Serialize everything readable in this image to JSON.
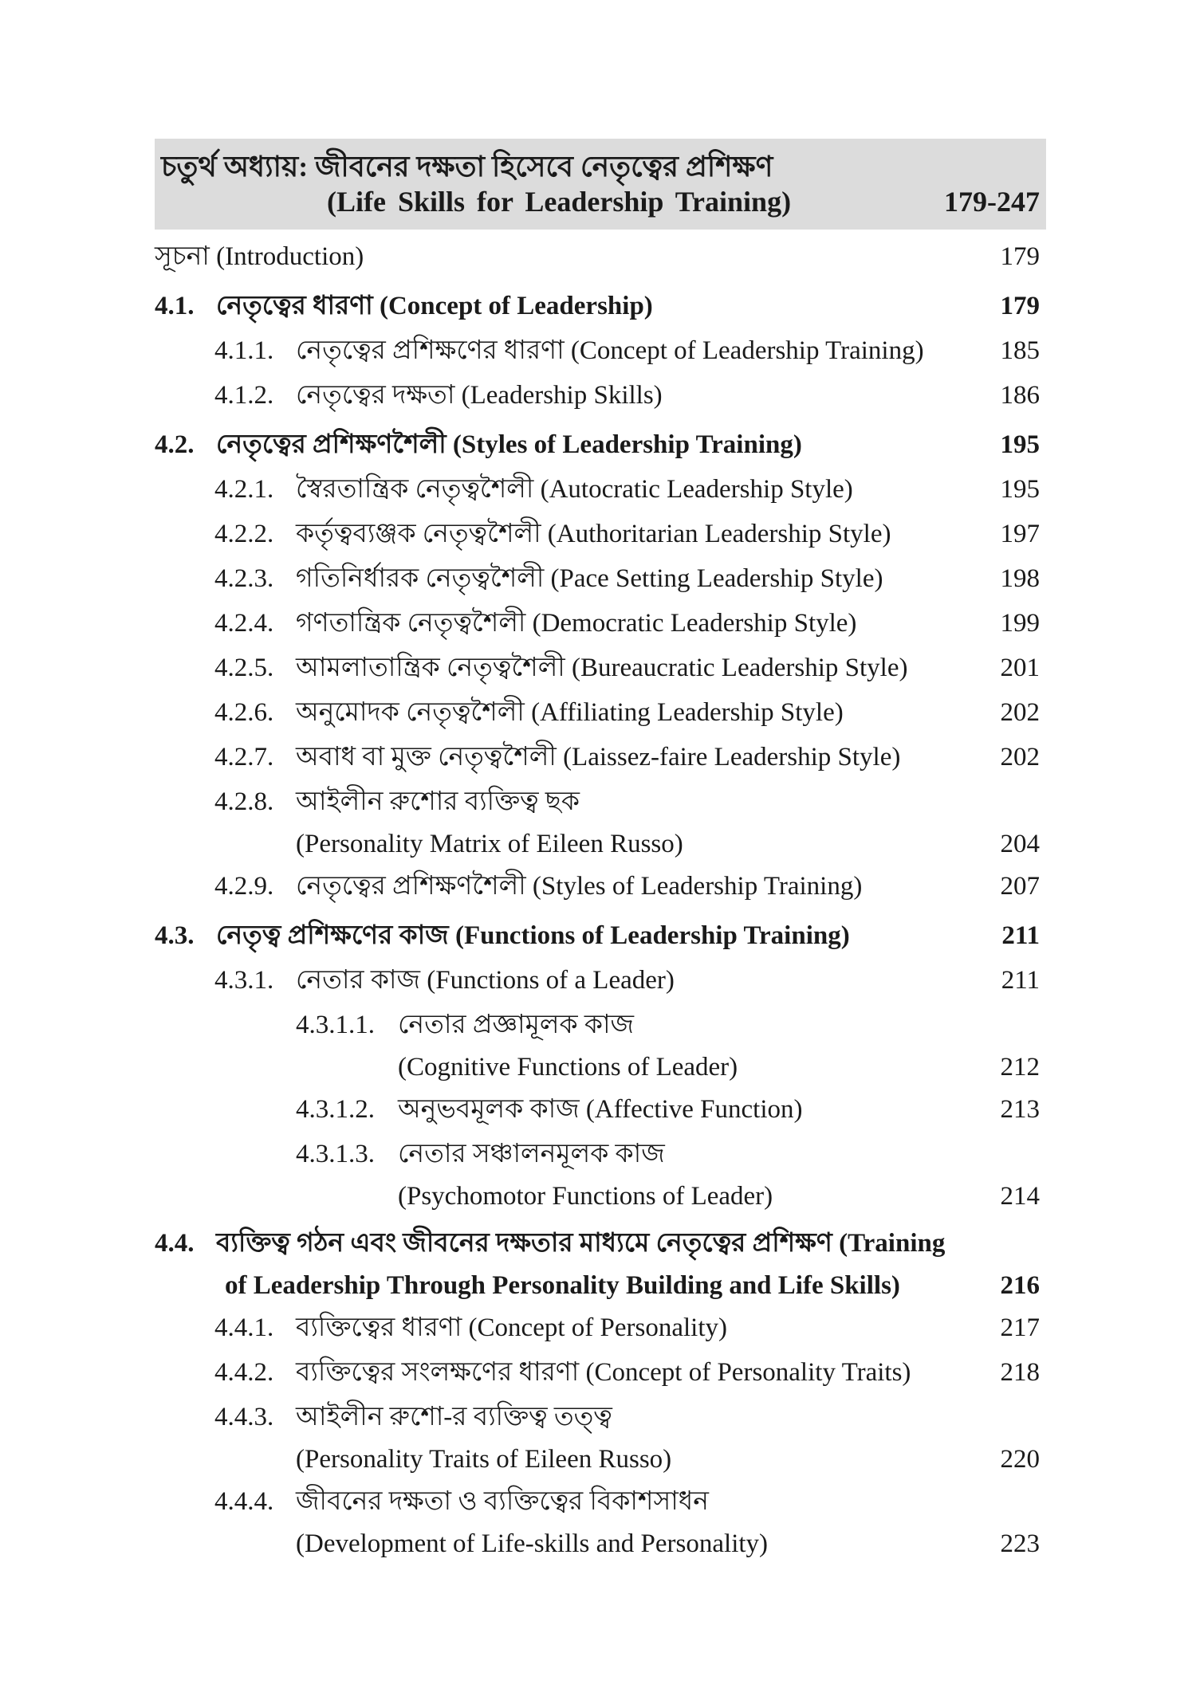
{
  "header": {
    "title_bn": "চতুর্থ অধ্যায়: জীবনের দক্ষতা হিসেবে নেতৃত্বের প্রশিক্ষণ",
    "title_en": "(Life Skills for Leadership Training)",
    "pages": "179-247"
  },
  "entries": [
    {
      "level": 0,
      "number": "",
      "lines": [
        "সূচনা (Introduction)"
      ],
      "page": "179",
      "bold": false
    },
    {
      "level": 1,
      "number": "4.1.",
      "lines": [
        "নেতৃত্বের ধারণা (Concept of Leadership)"
      ],
      "page": "179",
      "bold": true
    },
    {
      "level": 2,
      "number": "4.1.1.",
      "lines": [
        "নেতৃত্বের প্রশিক্ষণের ধারণা (Concept of Leadership Training)"
      ],
      "page": "185",
      "bold": false
    },
    {
      "level": 2,
      "number": "4.1.2.",
      "lines": [
        "নেতৃত্বের দক্ষতা (Leadership Skills)"
      ],
      "page": "186",
      "bold": false
    },
    {
      "level": 1,
      "number": "4.2.",
      "lines": [
        "নেতৃত্বের প্রশিক্ষণশৈলী (Styles of Leadership Training)"
      ],
      "page": "195",
      "bold": true
    },
    {
      "level": 2,
      "number": "4.2.1.",
      "lines": [
        "স্বৈরতান্ত্রিক নেতৃত্বশৈলী (Autocratic Leadership Style)"
      ],
      "page": "195",
      "bold": false
    },
    {
      "level": 2,
      "number": "4.2.2.",
      "lines": [
        "কর্তৃত্বব্যঞ্জক নেতৃত্বশৈলী (Authoritarian Leadership Style)"
      ],
      "page": "197",
      "bold": false
    },
    {
      "level": 2,
      "number": "4.2.3.",
      "lines": [
        "গতিনির্ধারক নেতৃত্বশৈলী (Pace Setting Leadership Style)"
      ],
      "page": "198",
      "bold": false
    },
    {
      "level": 2,
      "number": "4.2.4.",
      "lines": [
        "গণতান্ত্রিক নেতৃত্বশৈলী (Democratic Leadership Style)"
      ],
      "page": "199",
      "bold": false
    },
    {
      "level": 2,
      "number": "4.2.5.",
      "lines": [
        "আমলাতান্ত্রিক নেতৃত্বশৈলী (Bureaucratic Leadership Style)"
      ],
      "page": "201",
      "bold": false
    },
    {
      "level": 2,
      "number": "4.2.6.",
      "lines": [
        "অনুমোদক নেতৃত্বশৈলী (Affiliating Leadership Style)"
      ],
      "page": "202",
      "bold": false
    },
    {
      "level": 2,
      "number": "4.2.7.",
      "lines": [
        "অবাধ বা মুক্ত নেতৃত্বশৈলী (Laissez-faire Leadership Style)"
      ],
      "page": "202",
      "bold": false
    },
    {
      "level": 2,
      "number": "4.2.8.",
      "lines": [
        "আইলীন রুশোর ব্যক্তিত্ব ছক",
        "(Personality Matrix of Eileen Russo)"
      ],
      "page": "204",
      "bold": false
    },
    {
      "level": 2,
      "number": "4.2.9.",
      "lines": [
        "নেতৃত্বের প্রশিক্ষণশৈলী (Styles of Leadership Training)"
      ],
      "page": "207",
      "bold": false
    },
    {
      "level": 1,
      "number": "4.3.",
      "lines": [
        "নেতৃত্ব প্রশিক্ষণের কাজ (Functions of Leadership Training)"
      ],
      "page": "211",
      "bold": true
    },
    {
      "level": 2,
      "number": "4.3.1.",
      "lines": [
        "নেতার কাজ (Functions of a Leader)"
      ],
      "page": "211",
      "bold": false
    },
    {
      "level": 3,
      "number": "4.3.1.1.",
      "lines": [
        "নেতার প্রজ্ঞামূলক কাজ",
        "(Cognitive Functions of Leader)"
      ],
      "page": "212",
      "bold": false
    },
    {
      "level": 3,
      "number": "4.3.1.2.",
      "lines": [
        "অনুভবমূলক কাজ (Affective Function)"
      ],
      "page": "213",
      "bold": false
    },
    {
      "level": 3,
      "number": "4.3.1.3.",
      "lines": [
        "নেতার সঞ্চালনমূলক কাজ",
        "(Psychomotor Functions of Leader)"
      ],
      "page": "214",
      "bold": false
    },
    {
      "level": 1,
      "number": "4.4.",
      "lines": [
        "ব্যক্তিত্ব গঠন এবং জীবনের দক্ষতার মাধ্যমে নেতৃত্বের প্রশিক্ষণ (Training",
        "of Leadership Through Personality Building and Life Skills)"
      ],
      "page": "216",
      "bold": true
    },
    {
      "level": 2,
      "number": "4.4.1.",
      "lines": [
        "ব্যক্তিত্বের ধারণা (Concept of Personality)"
      ],
      "page": "217",
      "bold": false
    },
    {
      "level": 2,
      "number": "4.4.2.",
      "lines": [
        "ব্যক্তিত্বের সংলক্ষণের ধারণা (Concept of Personality Traits)"
      ],
      "page": "218",
      "bold": false
    },
    {
      "level": 2,
      "number": "4.4.3.",
      "lines": [
        "আইলীন রুশো-র ব্যক্তিত্ব তত্ত্ব",
        "(Personality Traits of Eileen Russo)"
      ],
      "page": "220",
      "bold": false
    },
    {
      "level": 2,
      "number": "4.4.4.",
      "lines": [
        "জীবনের দক্ষতা ও ব্যক্তিত্বের বিকাশসাধন",
        "(Development of Life-skills and Personality)"
      ],
      "page": "223",
      "bold": false
    }
  ]
}
